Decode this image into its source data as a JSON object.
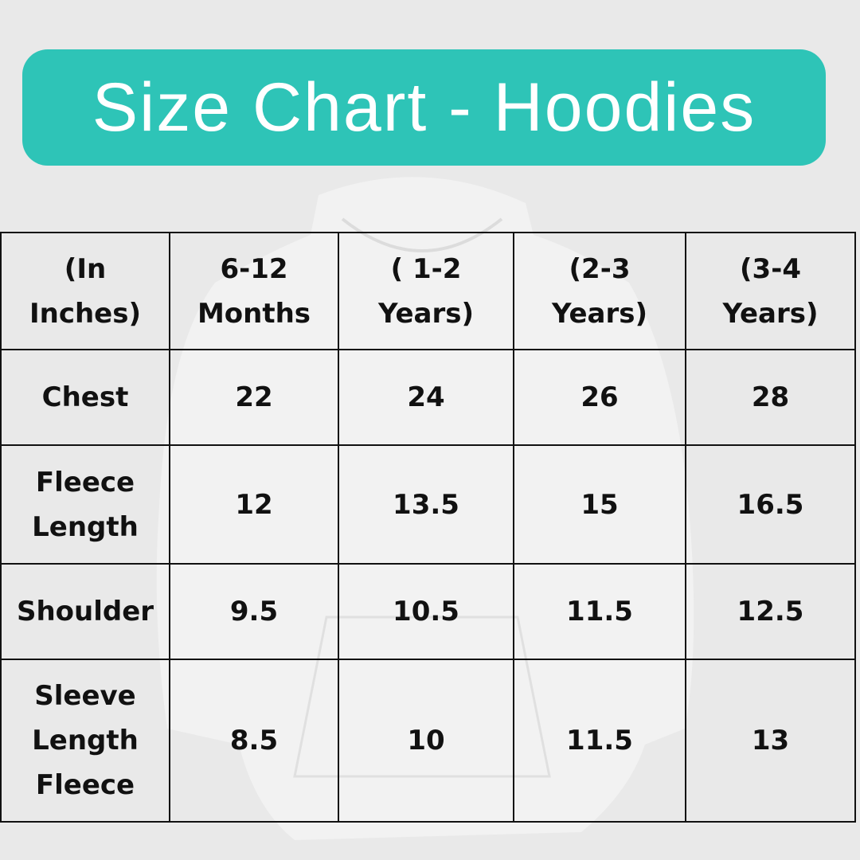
{
  "title": "Size Chart - Hoodies",
  "colors": {
    "banner": "#2ec4b7",
    "background": "#e9e9e9",
    "text": "#111111"
  },
  "table": {
    "header": [
      "(In\nInches)",
      "6-12\nMonths",
      "( 1-2\nYears)",
      "(2-3\nYears)",
      "(3-4\nYears)"
    ],
    "rows": [
      [
        "Chest",
        "22",
        "24",
        "26",
        "28"
      ],
      [
        "Fleece\n Length",
        "12",
        "13.5",
        "15",
        "16.5"
      ],
      [
        "Shoulder",
        "9.5",
        "10.5",
        "11.5",
        "12.5"
      ],
      [
        "Sleeve\n Length\nFleece",
        "8.5",
        "10",
        "11.5",
        "13"
      ]
    ]
  }
}
